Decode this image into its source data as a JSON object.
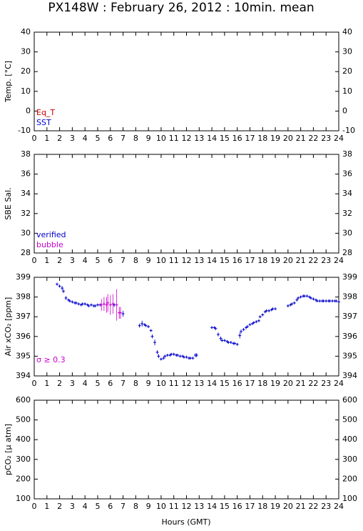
{
  "chart_data": [
    {
      "type": "scatter",
      "title": "PX148W : February 26, 2012 : 10min. mean",
      "ylabel": "Temp. [°C]",
      "xlim": [
        0,
        24
      ],
      "xticks": [
        0,
        1,
        2,
        3,
        4,
        5,
        6,
        7,
        8,
        9,
        10,
        11,
        12,
        13,
        14,
        15,
        16,
        17,
        18,
        19,
        20,
        21,
        22,
        23,
        24
      ],
      "ylim": [
        -10,
        40
      ],
      "yticks": [
        -10,
        0,
        10,
        20,
        30,
        40
      ],
      "legend": "lower left",
      "series": [
        {
          "name": "Eq_T",
          "color": "#cc0000",
          "x": [],
          "values": []
        },
        {
          "name": "SST",
          "color": "#0000cc",
          "x": [],
          "values": []
        }
      ]
    },
    {
      "type": "scatter",
      "ylabel": "SBE Sal.",
      "xlim": [
        0,
        24
      ],
      "xticks": [
        0,
        1,
        2,
        3,
        4,
        5,
        6,
        7,
        8,
        9,
        10,
        11,
        12,
        13,
        14,
        15,
        16,
        17,
        18,
        19,
        20,
        21,
        22,
        23,
        24
      ],
      "ylim": [
        28,
        38
      ],
      "yticks": [
        28,
        30,
        32,
        34,
        36,
        38
      ],
      "legend": "lower left",
      "series": [
        {
          "name": "verified",
          "color": "#0000cc",
          "x": [],
          "values": []
        },
        {
          "name": "bubble",
          "color": "#cc00cc",
          "x": [],
          "values": []
        }
      ]
    },
    {
      "type": "scatter",
      "ylabel": "Air xCO₂ [ppm]",
      "xlim": [
        0,
        24
      ],
      "xticks": [
        0,
        1,
        2,
        3,
        4,
        5,
        6,
        7,
        8,
        9,
        10,
        11,
        12,
        13,
        14,
        15,
        16,
        17,
        18,
        19,
        20,
        21,
        22,
        23,
        24
      ],
      "ylim": [
        394,
        399
      ],
      "yticks": [
        394,
        395,
        396,
        397,
        398,
        399
      ],
      "legend": "lower left",
      "series": [
        {
          "color": "#0000cc",
          "x": [
            1.8,
            2.0,
            2.2,
            2.3,
            2.5,
            2.7,
            2.8,
            3.0,
            3.2,
            3.3,
            3.5,
            3.7,
            3.8,
            4.0,
            4.2,
            4.3,
            4.5,
            4.7,
            4.8,
            5.0,
            5.2,
            6.3,
            7.0,
            8.3,
            8.5,
            8.7,
            8.8,
            9.0,
            9.2,
            9.3,
            9.5,
            9.7,
            9.8,
            10.0,
            10.2,
            10.3,
            10.5,
            10.7,
            10.8,
            11.0,
            11.2,
            11.3,
            11.5,
            11.7,
            11.8,
            12.0,
            12.2,
            12.3,
            12.5,
            12.7,
            12.8,
            14.0,
            14.2,
            14.3,
            14.5,
            14.7,
            14.8,
            15.0,
            15.2,
            15.3,
            15.5,
            15.7,
            15.8,
            16.0,
            16.2,
            16.3,
            16.5,
            16.7,
            16.8,
            17.0,
            17.2,
            17.3,
            17.5,
            17.7,
            17.8,
            18.0,
            18.2,
            18.3,
            18.5,
            18.7,
            18.8,
            19.0,
            20.0,
            20.2,
            20.3,
            20.5,
            20.7,
            20.8,
            21.0,
            21.2,
            21.3,
            21.5,
            21.7,
            21.8,
            22.0,
            22.2,
            22.3,
            22.5,
            22.7,
            22.8,
            23.0,
            23.2,
            23.3,
            23.5,
            23.7,
            23.8,
            24.0
          ],
          "values": [
            398.65,
            398.55,
            398.45,
            398.3,
            397.95,
            397.85,
            397.8,
            397.75,
            397.7,
            397.7,
            397.65,
            397.6,
            397.65,
            397.65,
            397.6,
            397.55,
            397.6,
            397.55,
            397.55,
            397.6,
            397.6,
            397.6,
            397.15,
            396.55,
            396.65,
            396.6,
            396.55,
            396.5,
            396.3,
            396.0,
            395.7,
            395.2,
            395.0,
            394.85,
            394.9,
            395.0,
            395.05,
            395.05,
            395.1,
            395.1,
            395.05,
            395.05,
            395.0,
            395.0,
            394.95,
            394.95,
            394.9,
            394.9,
            394.9,
            395.05,
            395.05,
            396.45,
            396.45,
            396.4,
            396.1,
            395.9,
            395.8,
            395.8,
            395.75,
            395.7,
            395.7,
            395.65,
            395.65,
            395.6,
            396.05,
            396.25,
            396.35,
            396.45,
            396.5,
            396.6,
            396.65,
            396.7,
            396.75,
            396.8,
            397.0,
            397.1,
            397.25,
            397.3,
            397.3,
            397.35,
            397.4,
            397.4,
            397.55,
            397.6,
            397.65,
            397.7,
            397.85,
            397.95,
            398.0,
            398.05,
            398.05,
            398.05,
            398.0,
            397.95,
            397.9,
            397.85,
            397.8,
            397.8,
            397.8,
            397.8,
            397.8,
            397.8,
            397.8,
            397.8,
            397.8,
            397.8,
            397.75
          ],
          "errors": [
            0.05,
            0.05,
            0.1,
            0.1,
            0.1,
            0.05,
            0.05,
            0.05,
            0.05,
            0.05,
            0.05,
            0.05,
            0.05,
            0.05,
            0.05,
            0.05,
            0.05,
            0.05,
            0.05,
            0.05,
            0.05,
            0.1,
            0.15,
            0.1,
            0.15,
            0.05,
            0.05,
            0.05,
            0.05,
            0.1,
            0.15,
            0.1,
            0.1,
            0.05,
            0.05,
            0.05,
            0.05,
            0.05,
            0.05,
            0.05,
            0.05,
            0.05,
            0.05,
            0.05,
            0.05,
            0.05,
            0.05,
            0.05,
            0.05,
            0.1,
            0.1,
            0.05,
            0.05,
            0.05,
            0.1,
            0.1,
            0.05,
            0.05,
            0.05,
            0.05,
            0.05,
            0.05,
            0.05,
            0.05,
            0.15,
            0.1,
            0.05,
            0.05,
            0.05,
            0.05,
            0.05,
            0.05,
            0.05,
            0.05,
            0.05,
            0.05,
            0.05,
            0.05,
            0.05,
            0.05,
            0.05,
            0.05,
            0.05,
            0.05,
            0.05,
            0.05,
            0.05,
            0.05,
            0.05,
            0.05,
            0.05,
            0.05,
            0.05,
            0.05,
            0.05,
            0.05,
            0.05,
            0.05,
            0.05,
            0.05,
            0.05,
            0.05,
            0.05,
            0.05,
            0.05,
            0.05,
            0.05
          ]
        },
        {
          "name": "σ ≥ 0.3",
          "color": "#cc00cc",
          "x": [
            5.3,
            5.5,
            5.7,
            5.8,
            6.0,
            6.2,
            6.5,
            6.7,
            6.8
          ],
          "values": [
            397.6,
            397.65,
            397.6,
            397.7,
            397.6,
            397.65,
            397.6,
            397.2,
            397.2
          ],
          "errors": [
            0.3,
            0.35,
            0.4,
            0.45,
            0.5,
            0.5,
            0.8,
            0.3,
            0.3
          ]
        }
      ]
    },
    {
      "type": "scatter",
      "ylabel": "pCO₂ [μ atm]",
      "xlabel": "Hours (GMT)",
      "xlim": [
        0,
        24
      ],
      "xticks": [
        0,
        1,
        2,
        3,
        4,
        5,
        6,
        7,
        8,
        9,
        10,
        11,
        12,
        13,
        14,
        15,
        16,
        17,
        18,
        19,
        20,
        21,
        22,
        23,
        24
      ],
      "ylim": [
        100,
        600
      ],
      "yticks": [
        100,
        200,
        300,
        400,
        500,
        600
      ],
      "legend": "lower left",
      "series": []
    }
  ]
}
